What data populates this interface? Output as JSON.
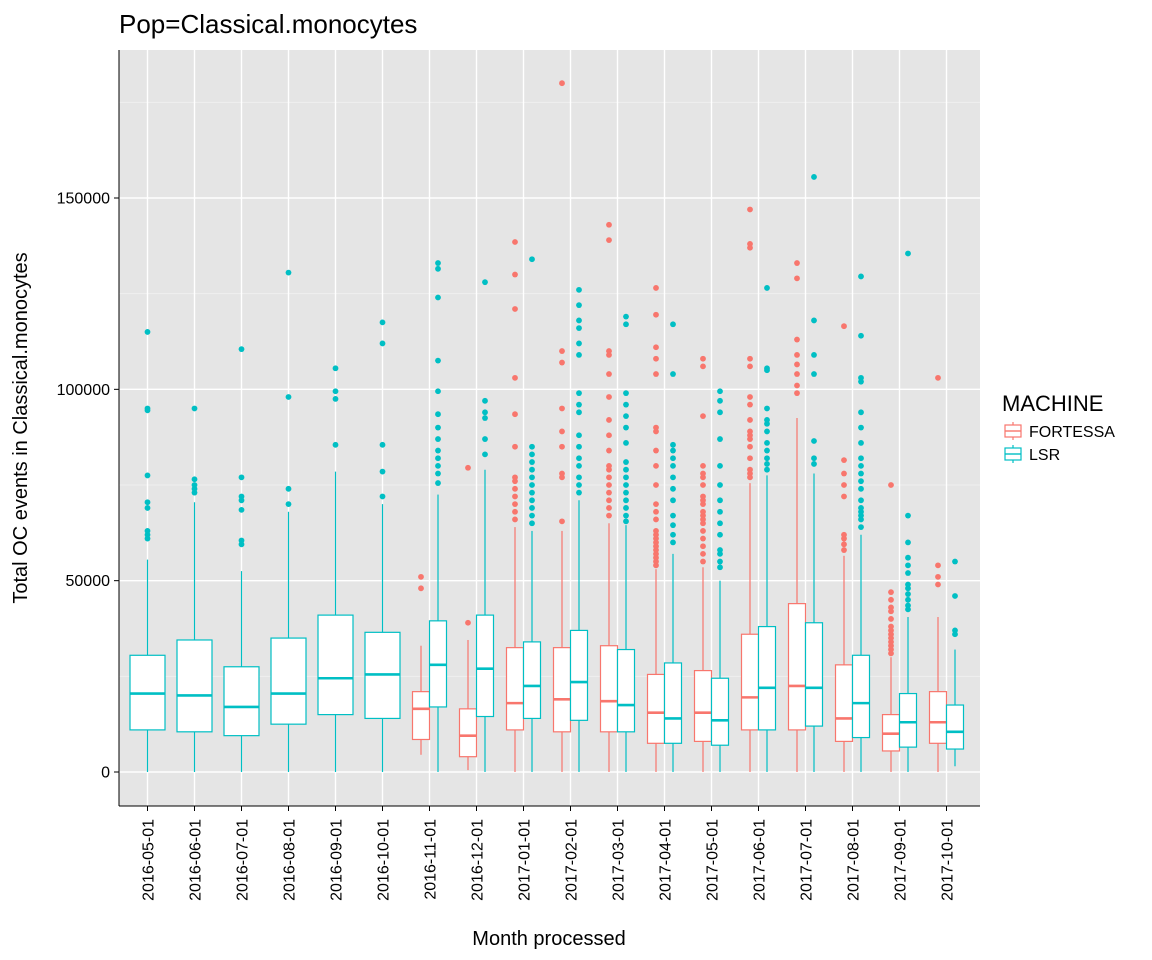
{
  "chart_data": {
    "type": "box",
    "title": "Pop=Classical.monocytes",
    "xlabel": "Month processed",
    "ylabel": "Total OC events in Classical.monocytes",
    "ylim": [
      -9000,
      190000
    ],
    "yticks": [
      0,
      50000,
      100000,
      150000
    ],
    "categories": [
      "2016-05-01",
      "2016-06-01",
      "2016-07-01",
      "2016-08-01",
      "2016-09-01",
      "2016-10-01",
      "2016-11-01",
      "2016-12-01",
      "2017-01-01",
      "2017-02-01",
      "2017-03-01",
      "2017-04-01",
      "2017-05-01",
      "2017-06-01",
      "2017-07-01",
      "2017-08-01",
      "2017-09-01",
      "2017-10-01"
    ],
    "legend": {
      "title": "MACHINE",
      "placement": "right",
      "entries": [
        {
          "label": "FORTESSA",
          "color": "#F8766D"
        },
        {
          "label": "LSR",
          "color": "#00BFC4"
        }
      ]
    },
    "background": "#E5E5E5",
    "grid": true,
    "series": [
      {
        "name": "FORTESSA",
        "color": "#F8766D",
        "boxes": [
          null,
          null,
          null,
          null,
          null,
          null,
          {
            "min": 4500,
            "q1": 8500,
            "median": 16500,
            "q3": 21000,
            "max": 33000,
            "outliers": [
              48000,
              51000
            ]
          },
          {
            "min": 500,
            "q1": 4000,
            "median": 9500,
            "q3": 16500,
            "max": 34500,
            "outliers": [
              39000,
              79500
            ]
          },
          {
            "min": 0,
            "q1": 11000,
            "median": 18000,
            "q3": 32500,
            "max": 64000,
            "outliers": [
              66000,
              68000,
              70000,
              72000,
              74000,
              76000,
              77000,
              85000,
              93500,
              103000,
              121000,
              130000,
              138500
            ]
          },
          {
            "min": 0,
            "q1": 10500,
            "median": 19000,
            "q3": 32500,
            "max": 63000,
            "outliers": [
              65500,
              77000,
              78000,
              85000,
              89000,
              95000,
              107000,
              110000,
              180000
            ]
          },
          {
            "min": 0,
            "q1": 10500,
            "median": 18500,
            "q3": 33000,
            "max": 65000,
            "outliers": [
              67000,
              69000,
              71000,
              73000,
              75000,
              77000,
              79000,
              80000,
              84000,
              88000,
              92000,
              98000,
              104000,
              109000,
              110000,
              139000,
              143000
            ]
          },
          {
            "min": 0,
            "q1": 7500,
            "median": 15500,
            "q3": 25500,
            "max": 53000,
            "outliers": [
              54000,
              55000,
              56000,
              57000,
              58000,
              59000,
              60000,
              61000,
              62000,
              63000,
              66000,
              68000,
              70000,
              75000,
              80000,
              84000,
              89000,
              90000,
              104000,
              108000,
              111000,
              119500,
              126500
            ]
          },
          {
            "min": 0,
            "q1": 8000,
            "median": 15500,
            "q3": 26500,
            "max": 53500,
            "outliers": [
              55000,
              57000,
              59000,
              61000,
              63000,
              65000,
              66000,
              67000,
              68000,
              70000,
              71000,
              72000,
              75000,
              77000,
              78000,
              80000,
              93000,
              106000,
              108000
            ]
          },
          {
            "min": 0,
            "q1": 11000,
            "median": 19500,
            "q3": 36000,
            "max": 75500,
            "outliers": [
              77000,
              78000,
              79000,
              82000,
              85000,
              87000,
              88000,
              89000,
              92000,
              96000,
              98000,
              106000,
              108000,
              137000,
              138000,
              147000
            ]
          },
          {
            "min": 0,
            "q1": 11000,
            "median": 22500,
            "q3": 44000,
            "max": 92500,
            "outliers": [
              99000,
              101000,
              104000,
              106500,
              109000,
              113000,
              129000,
              133000
            ]
          },
          {
            "min": 0,
            "q1": 8000,
            "median": 14000,
            "q3": 28000,
            "max": 56500,
            "outliers": [
              58000,
              59500,
              61000,
              62000,
              72000,
              75000,
              78000,
              81500,
              116500
            ]
          },
          {
            "min": 0,
            "q1": 5500,
            "median": 10000,
            "q3": 15000,
            "max": 30000,
            "outliers": [
              31000,
              32000,
              33000,
              34000,
              35000,
              36000,
              37000,
              38000,
              40000,
              42000,
              43000,
              45000,
              47000,
              75000
            ]
          },
          {
            "min": 0,
            "q1": 7500,
            "median": 13000,
            "q3": 21000,
            "max": 40500,
            "outliers": [
              49000,
              51000,
              54000,
              103000
            ]
          }
        ]
      },
      {
        "name": "LSR",
        "color": "#00BFC4",
        "boxes": [
          {
            "min": 0,
            "q1": 11000,
            "median": 20500,
            "q3": 30500,
            "max": 55500,
            "outliers": [
              61000,
              62000,
              63000,
              69000,
              70500,
              77500,
              94500,
              95000,
              115000
            ]
          },
          {
            "min": 0,
            "q1": 10500,
            "median": 20000,
            "q3": 34500,
            "max": 70500,
            "outliers": [
              73000,
              74000,
              75000,
              76500,
              95000
            ]
          },
          {
            "min": 0,
            "q1": 9500,
            "median": 17000,
            "q3": 27500,
            "max": 52500,
            "outliers": [
              59500,
              60500,
              68500,
              71000,
              72000,
              77000,
              110500
            ]
          },
          {
            "min": 0,
            "q1": 12500,
            "median": 20500,
            "q3": 35000,
            "max": 68000,
            "outliers": [
              70000,
              74000,
              98000,
              130500
            ]
          },
          {
            "min": 0,
            "q1": 15000,
            "median": 24500,
            "q3": 41000,
            "max": 78500,
            "outliers": [
              85500,
              97500,
              99500,
              105500
            ]
          },
          {
            "min": 0,
            "q1": 14000,
            "median": 25500,
            "q3": 36500,
            "max": 70000,
            "outliers": [
              72000,
              78500,
              85500,
              112000,
              117500
            ]
          },
          {
            "min": 0,
            "q1": 17000,
            "median": 28000,
            "q3": 39500,
            "max": 72500,
            "outliers": [
              75500,
              78000,
              80000,
              82000,
              84000,
              87000,
              90000,
              93500,
              99500,
              107500,
              124000,
              131500,
              133000
            ]
          },
          {
            "min": 0,
            "q1": 14500,
            "median": 27000,
            "q3": 41000,
            "max": 79000,
            "outliers": [
              83000,
              87000,
              92500,
              94000,
              97000,
              128000
            ]
          },
          {
            "min": 0,
            "q1": 14000,
            "median": 22500,
            "q3": 34000,
            "max": 63000,
            "outliers": [
              65000,
              67000,
              69000,
              71000,
              73000,
              75000,
              77000,
              79000,
              81000,
              83000,
              85000,
              134000
            ]
          },
          {
            "min": 0,
            "q1": 13500,
            "median": 23500,
            "q3": 37000,
            "max": 71000,
            "outliers": [
              73000,
              75000,
              77000,
              80000,
              82000,
              85000,
              88000,
              94000,
              96000,
              99000,
              109000,
              112000,
              116000,
              118000,
              122000,
              126000
            ]
          },
          {
            "min": 0,
            "q1": 10500,
            "median": 17500,
            "q3": 32000,
            "max": 64500,
            "outliers": [
              65500,
              67000,
              69000,
              71000,
              73000,
              75000,
              77000,
              79000,
              81000,
              86000,
              90000,
              93000,
              96000,
              99000,
              117000,
              119000
            ]
          },
          {
            "min": 0,
            "q1": 7500,
            "median": 14000,
            "q3": 28500,
            "max": 57000,
            "outliers": [
              60000,
              62000,
              64500,
              67000,
              71000,
              74000,
              77000,
              80000,
              82000,
              84000,
              85500,
              104000,
              117000
            ]
          },
          {
            "min": 0,
            "q1": 7000,
            "median": 13500,
            "q3": 24500,
            "max": 50000,
            "outliers": [
              53500,
              55000,
              57000,
              58000,
              62000,
              65000,
              68000,
              71000,
              75000,
              80000,
              87000,
              94000,
              97000,
              99500
            ]
          },
          {
            "min": 0,
            "q1": 11000,
            "median": 22000,
            "q3": 38000,
            "max": 77500,
            "outliers": [
              79000,
              80500,
              82000,
              84000,
              86000,
              89000,
              91000,
              92000,
              95000,
              105000,
              105500,
              126500
            ]
          },
          {
            "min": 0,
            "q1": 12000,
            "median": 22000,
            "q3": 39000,
            "max": 78000,
            "outliers": [
              80500,
              82000,
              86500,
              104000,
              109000,
              118000,
              155500
            ]
          },
          {
            "min": 0,
            "q1": 9000,
            "median": 18000,
            "q3": 30500,
            "max": 62000,
            "outliers": [
              64000,
              66000,
              67000,
              68000,
              69000,
              71000,
              74000,
              76000,
              78000,
              80000,
              82000,
              86000,
              90000,
              94000,
              102000,
              103000,
              114000,
              129500
            ]
          },
          {
            "min": 0,
            "q1": 6500,
            "median": 13000,
            "q3": 20500,
            "max": 40500,
            "outliers": [
              42500,
              43500,
              45000,
              46500,
              48000,
              49000,
              52000,
              54000,
              56000,
              60000,
              67000,
              135500
            ]
          },
          {
            "min": 1500,
            "q1": 6000,
            "median": 10500,
            "q3": 17500,
            "max": 32000,
            "outliers": [
              36000,
              37000,
              46000,
              55000
            ]
          }
        ]
      }
    ]
  }
}
